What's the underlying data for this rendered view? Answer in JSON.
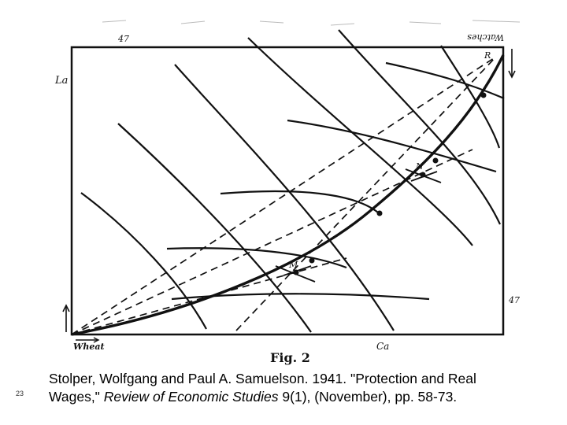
{
  "figure": {
    "caption": "Fig. 2",
    "labels": {
      "top_left": "47",
      "top_right": "Watches",
      "left_axis": "La",
      "right_axis": "47",
      "bottom_left": "Wheat",
      "bottom_right": "Ca"
    },
    "points": {
      "R": "R",
      "N": "N",
      "M": "M"
    }
  },
  "citation": {
    "part1": "Stolper, Wolfgang and Paul A. Samuelson. 1941. \"Protection and Real Wages,\" ",
    "journal": "Review of Economic Studies",
    "part2": " 9(1), (November), pp. 58-73."
  },
  "slide_number": "23",
  "colors": {
    "ink": "#111111",
    "background": "#ffffff"
  }
}
